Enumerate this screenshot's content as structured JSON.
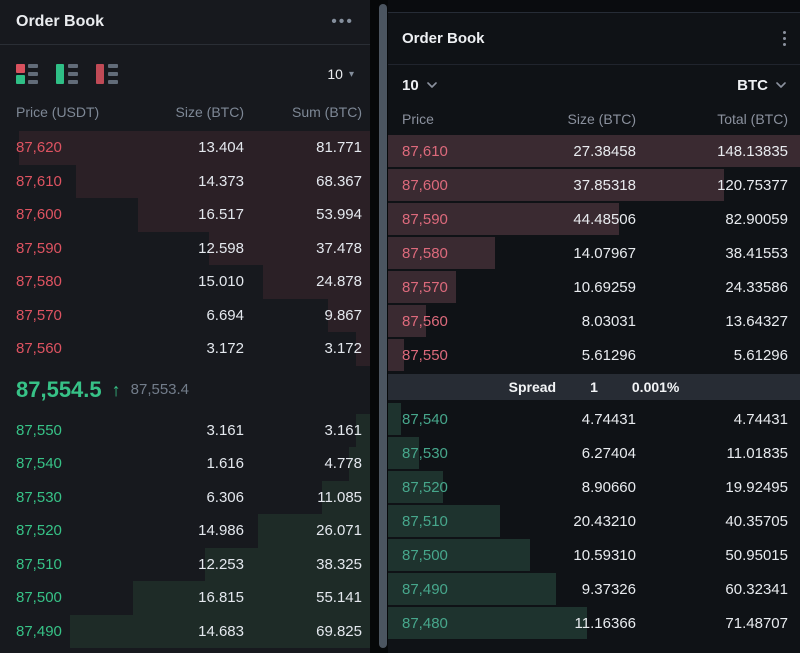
{
  "left_panel": {
    "title": "Order Book",
    "menu_icon": "•••",
    "depth_select": {
      "value": "10",
      "caret": "▾"
    },
    "columns": [
      "Price (USDT)",
      "Size (BTC)",
      "Sum (BTC)"
    ],
    "depth_max": 81.771,
    "bar_scale": 95,
    "asks": [
      [
        "87,620",
        "13.404",
        "81.771"
      ],
      [
        "87,610",
        "14.373",
        "68.367"
      ],
      [
        "87,600",
        "16.517",
        "53.994"
      ],
      [
        "87,590",
        "12.598",
        "37.478"
      ],
      [
        "87,580",
        "15.010",
        "24.878"
      ],
      [
        "87,570",
        "6.694",
        "9.867"
      ],
      [
        "87,560",
        "3.172",
        "3.172"
      ]
    ],
    "mid": {
      "last_price": "87,554.5",
      "direction_arrow": "↑",
      "mark_price": "87,553.4"
    },
    "bids": [
      [
        "87,550",
        "3.161",
        "3.161"
      ],
      [
        "87,540",
        "1.616",
        "4.778"
      ],
      [
        "87,530",
        "6.306",
        "11.085"
      ],
      [
        "87,520",
        "14.986",
        "26.071"
      ],
      [
        "87,510",
        "12.253",
        "38.325"
      ],
      [
        "87,500",
        "16.815",
        "55.141"
      ],
      [
        "87,490",
        "14.683",
        "69.825"
      ]
    ],
    "colors": {
      "ask_text": "#de5361",
      "bid_text": "#37c287",
      "ask_bar": "#2b2026",
      "bid_bar": "#1e2b27",
      "bg": "#17191e"
    }
  },
  "right_panel": {
    "title": "Order Book",
    "depth_select": {
      "value": "10"
    },
    "asset_select": {
      "value": "BTC"
    },
    "columns": [
      "Price",
      "Size (BTC)",
      "Total (BTC)"
    ],
    "depth_max": 148.13835,
    "bar_scale": 100,
    "asks": [
      [
        "87,610",
        "27.38458",
        "148.13835"
      ],
      [
        "87,600",
        "37.85318",
        "120.75377"
      ],
      [
        "87,590",
        "44.48506",
        "82.90059"
      ],
      [
        "87,580",
        "14.07967",
        "38.41553"
      ],
      [
        "87,570",
        "10.69259",
        "24.33586"
      ],
      [
        "87,560",
        "8.03031",
        "13.64327"
      ],
      [
        "87,550",
        "5.61296",
        "5.61296"
      ]
    ],
    "spread": {
      "label": "Spread",
      "value": "1",
      "percent": "0.001%"
    },
    "bids": [
      [
        "87,540",
        "4.74431",
        "4.74431"
      ],
      [
        "87,530",
        "6.27404",
        "11.01835"
      ],
      [
        "87,520",
        "8.90660",
        "19.92495"
      ],
      [
        "87,510",
        "20.43210",
        "40.35705"
      ],
      [
        "87,500",
        "10.59310",
        "50.95015"
      ],
      [
        "87,490",
        "9.37326",
        "60.32341"
      ],
      [
        "87,480",
        "11.16366",
        "71.48707"
      ]
    ],
    "colors": {
      "ask_text": "#dd6a7c",
      "bid_text": "#47a78c",
      "ask_bar": "#3a2a31",
      "bid_bar": "#1e332e",
      "bg": "#0f1216",
      "spread_bg": "#272c34"
    }
  }
}
